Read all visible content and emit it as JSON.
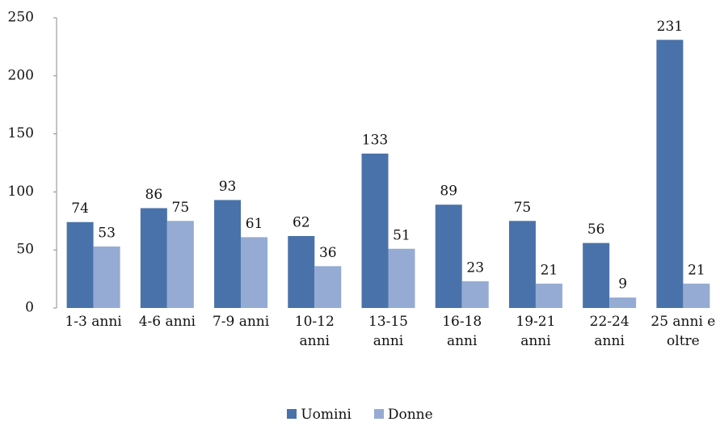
{
  "chart_data": {
    "type": "bar",
    "categories": [
      "1-3 anni",
      "4-6 anni",
      "7-9 anni",
      "10-12 anni",
      "13-15 anni",
      "16-18 anni",
      "19-21 anni",
      "22-24 anni",
      "25 anni e oltre"
    ],
    "series": [
      {
        "name": "Uomini",
        "color": "#4a72aa",
        "values": [
          74,
          86,
          93,
          62,
          133,
          89,
          75,
          56,
          231
        ]
      },
      {
        "name": "Donne",
        "color": "#95abd3",
        "values": [
          53,
          75,
          61,
          36,
          51,
          23,
          21,
          9,
          21
        ]
      }
    ],
    "ylim": [
      0,
      250
    ],
    "yticks": [
      0,
      50,
      100,
      150,
      200,
      250
    ],
    "grid": false,
    "legend": "bottom"
  }
}
